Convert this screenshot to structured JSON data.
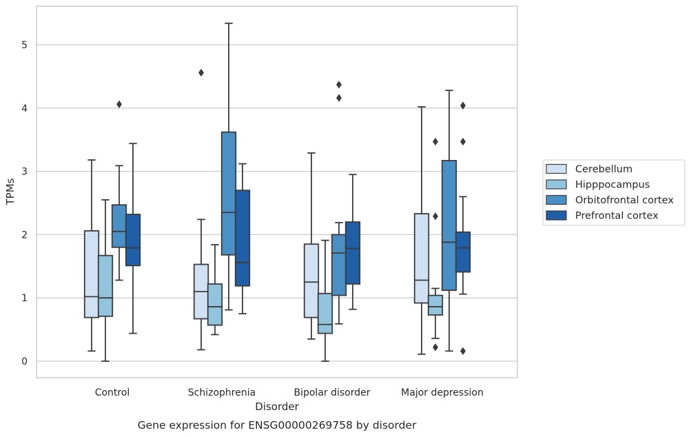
{
  "chart_data": {
    "type": "boxplot",
    "xlabel": "Disorder",
    "ylabel": "TPMs",
    "caption": "Gene expression for ENSG00000269758 by disorder",
    "ylim": [
      -0.25,
      5.6
    ],
    "yticks": [
      0,
      1,
      2,
      3,
      4,
      5
    ],
    "grid": "horizontal",
    "legend_position": "right",
    "categories": [
      "Control",
      "Schizophrenia",
      "Bipolar disorder",
      "Major depression"
    ],
    "series": [
      {
        "name": "Cerebellum",
        "color": "#cfe1f2",
        "boxes": [
          {
            "whislo": 0.16,
            "q1": 0.69,
            "median": 1.02,
            "q3": 2.06,
            "whishi": 3.18,
            "fliers": []
          },
          {
            "whislo": 0.18,
            "q1": 0.67,
            "median": 1.1,
            "q3": 1.53,
            "whishi": 2.24,
            "fliers": [
              4.56
            ]
          },
          {
            "whislo": 0.35,
            "q1": 0.69,
            "median": 1.25,
            "q3": 1.85,
            "whishi": 3.29,
            "fliers": []
          },
          {
            "whislo": 0.11,
            "q1": 0.92,
            "median": 1.28,
            "q3": 2.33,
            "whishi": 4.02,
            "fliers": []
          }
        ]
      },
      {
        "name": "Hipppocampus",
        "color": "#93c4de",
        "boxes": [
          {
            "whislo": 0.0,
            "q1": 0.71,
            "median": 1.0,
            "q3": 1.67,
            "whishi": 2.55,
            "fliers": []
          },
          {
            "whislo": 0.42,
            "q1": 0.57,
            "median": 0.86,
            "q3": 1.22,
            "whishi": 1.84,
            "fliers": []
          },
          {
            "whislo": 0.0,
            "q1": 0.44,
            "median": 0.58,
            "q3": 1.07,
            "whishi": 1.91,
            "fliers": []
          },
          {
            "whislo": 0.36,
            "q1": 0.73,
            "median": 0.86,
            "q3": 1.04,
            "whishi": 1.15,
            "fliers": [
              0.22,
              2.29,
              3.47
            ]
          }
        ]
      },
      {
        "name": "Orbitofrontal cortex",
        "color": "#4a90c4",
        "boxes": [
          {
            "whislo": 1.28,
            "q1": 1.8,
            "median": 2.05,
            "q3": 2.47,
            "whishi": 3.09,
            "fliers": [
              4.06
            ]
          },
          {
            "whislo": 0.81,
            "q1": 1.68,
            "median": 2.35,
            "q3": 3.62,
            "whishi": 5.34,
            "fliers": []
          },
          {
            "whislo": 0.59,
            "q1": 1.04,
            "median": 1.71,
            "q3": 2.0,
            "whishi": 2.19,
            "fliers": [
              4.16,
              4.37
            ]
          },
          {
            "whislo": 0.16,
            "q1": 1.12,
            "median": 1.88,
            "q3": 3.17,
            "whishi": 4.28,
            "fliers": []
          }
        ]
      },
      {
        "name": "Prefrontal cortex",
        "color": "#1f5fa8",
        "boxes": [
          {
            "whislo": 0.44,
            "q1": 1.51,
            "median": 1.79,
            "q3": 2.32,
            "whishi": 3.44,
            "fliers": []
          },
          {
            "whislo": 0.75,
            "q1": 1.19,
            "median": 1.56,
            "q3": 2.7,
            "whishi": 3.12,
            "fliers": []
          },
          {
            "whislo": 0.82,
            "q1": 1.22,
            "median": 1.78,
            "q3": 2.2,
            "whishi": 2.95,
            "fliers": []
          },
          {
            "whislo": 1.06,
            "q1": 1.41,
            "median": 1.79,
            "q3": 2.04,
            "whishi": 2.6,
            "fliers": [
              0.16,
              3.47,
              4.04
            ]
          }
        ]
      }
    ]
  }
}
